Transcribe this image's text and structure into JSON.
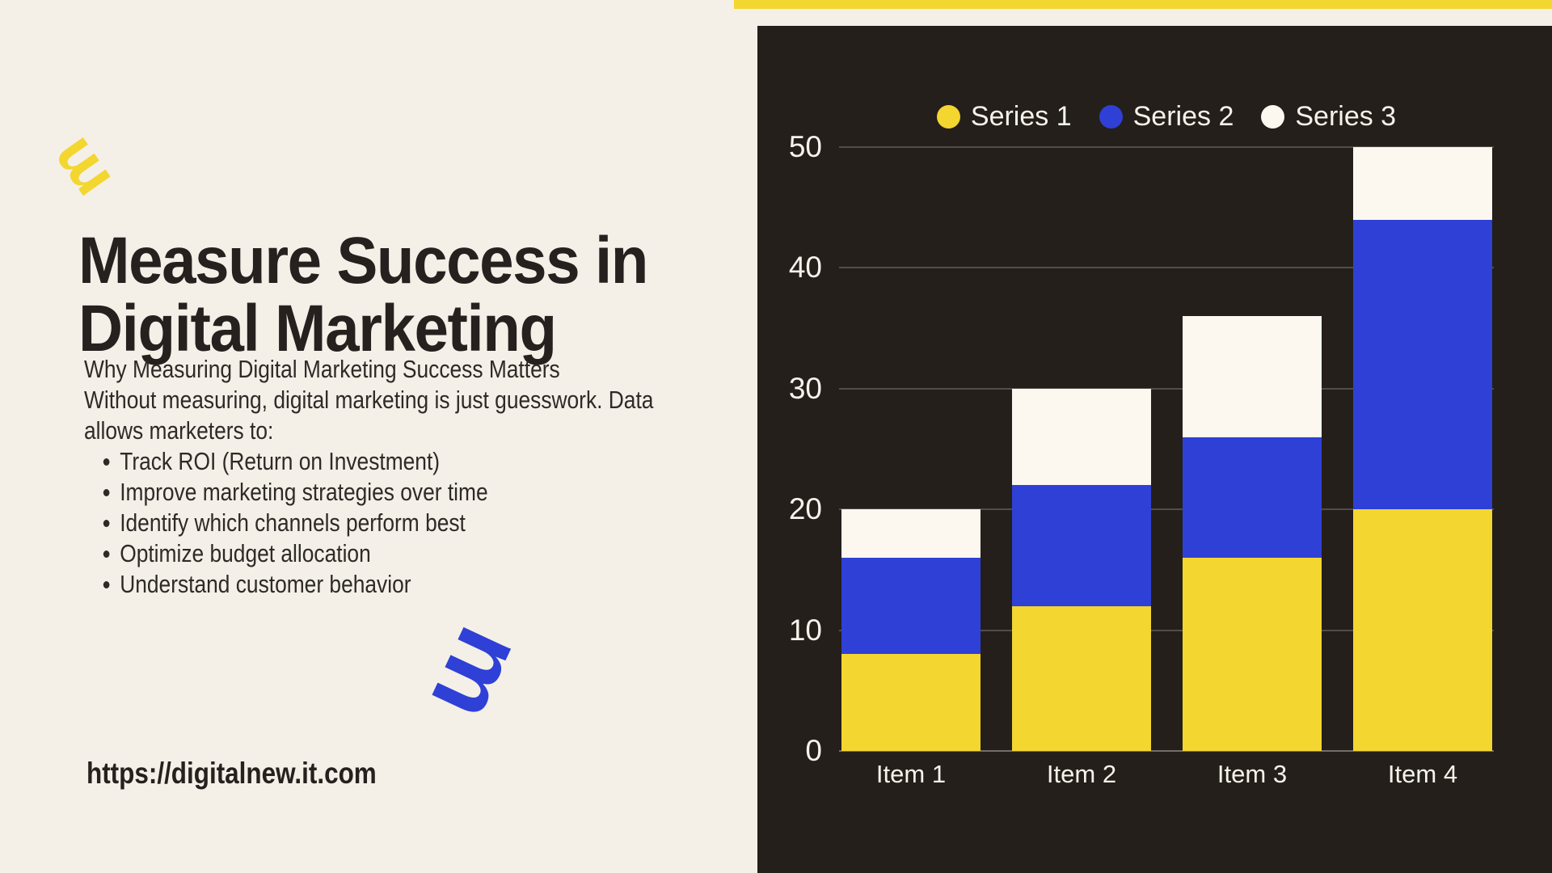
{
  "page": {
    "background": "#F4F0E8",
    "ink": "#26211E",
    "accent_yellow": "#F3D62F",
    "accent_blue": "#2F40D6",
    "panel_dark": "#241F1B"
  },
  "left": {
    "logo_icon": "brand-m-mark",
    "deco_icon": "brand-m-mark",
    "title_lines": [
      "Measure Success in",
      "Digital Marketing"
    ],
    "body_lines": [
      "Why Measuring Digital Marketing Success Matters",
      "Without measuring, digital marketing is just guesswork. Data",
      "allows marketers to:"
    ],
    "bullets": [
      "Track ROI (Return on Investment)",
      "Improve marketing strategies over time",
      "Identify which channels perform best",
      "Optimize budget allocation",
      "Understand customer behavior"
    ],
    "url": "https://digitalnew.it.com"
  },
  "chart_data": {
    "type": "bar",
    "stacked": true,
    "categories": [
      "Item 1",
      "Item 2",
      "Item 3",
      "Item 4"
    ],
    "series": [
      {
        "name": "Series 1",
        "color": "#F3D62F",
        "values": [
          8,
          12,
          16,
          20
        ]
      },
      {
        "name": "Series 2",
        "color": "#2F40D6",
        "values": [
          8,
          10,
          10,
          24
        ]
      },
      {
        "name": "Series 3",
        "color": "#FCF8F0",
        "values": [
          4,
          8,
          10,
          6
        ]
      }
    ],
    "totals": [
      20,
      30,
      36,
      50
    ],
    "y_ticks": [
      0,
      10,
      20,
      30,
      40,
      50
    ],
    "ylim": [
      0,
      50
    ],
    "xlabel": "",
    "ylabel": "",
    "grid": true,
    "legend_position": "top",
    "panel_bg": "#241F1B",
    "axis_text_color": "#F7F3EB"
  }
}
